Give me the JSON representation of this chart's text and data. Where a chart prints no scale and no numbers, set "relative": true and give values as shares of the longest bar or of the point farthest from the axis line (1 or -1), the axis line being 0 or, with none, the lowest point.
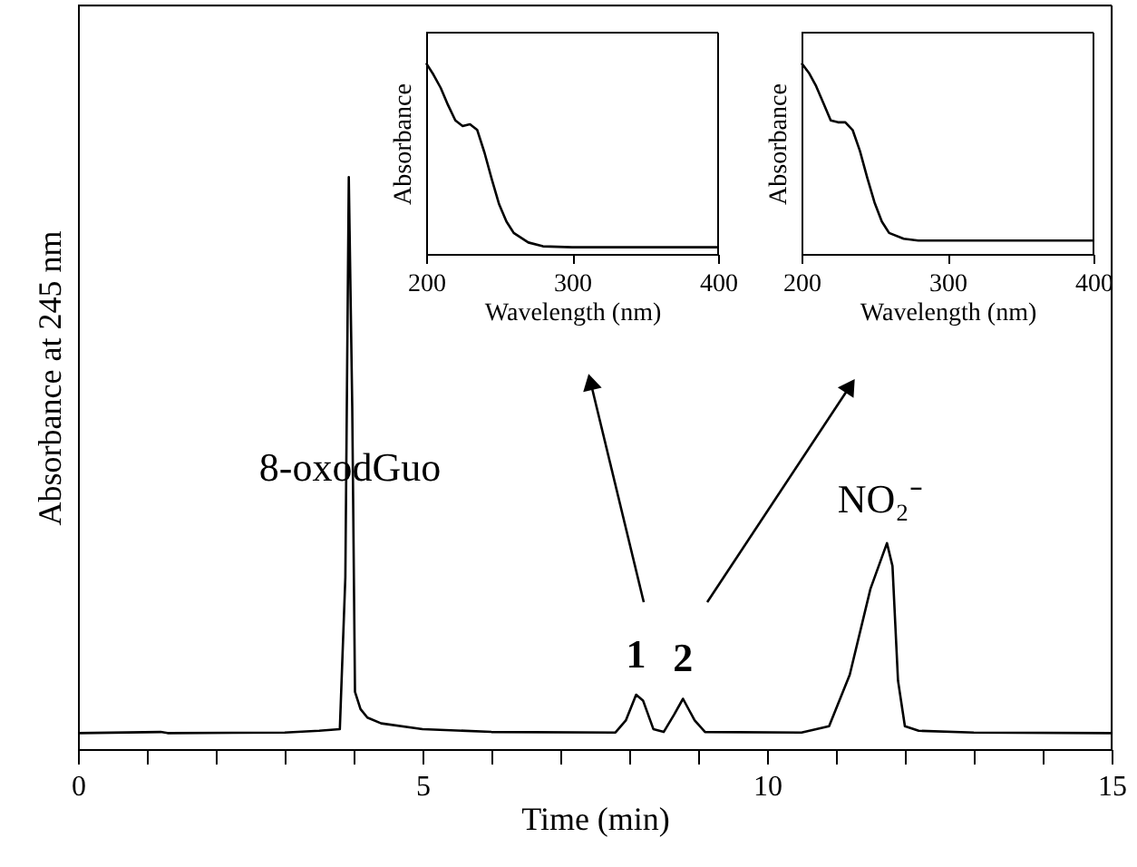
{
  "chart_data": [
    {
      "type": "line",
      "relative": true,
      "xlabel": "Time (min)",
      "ylabel": "Absorbance at 245 nm",
      "xlim": [
        0,
        15
      ],
      "xticks": [
        0,
        {
          "value": 1,
          "label": null
        },
        {
          "value": 2,
          "label": null
        },
        {
          "value": 3,
          "label": null
        },
        {
          "value": 4,
          "label": null
        },
        5,
        {
          "value": 6,
          "label": null
        },
        {
          "value": 7,
          "label": null
        },
        {
          "value": 8,
          "label": null
        },
        {
          "value": 9,
          "label": null
        },
        10,
        {
          "value": 11,
          "label": null
        },
        {
          "value": 12,
          "label": null
        },
        {
          "value": 13,
          "label": null
        },
        {
          "value": 14,
          "label": null
        },
        15
      ],
      "tick_labels": "x",
      "x": [
        0,
        1.2,
        1.3,
        3.0,
        3.5,
        3.8,
        3.88,
        3.93,
        3.98,
        4.02,
        4.1,
        4.2,
        4.4,
        5.0,
        6.0,
        7.8,
        7.95,
        8.1,
        8.2,
        8.35,
        8.5,
        8.65,
        8.78,
        8.95,
        9.1,
        10.5,
        10.9,
        11.2,
        11.5,
        11.74,
        11.82,
        11.9,
        12.0,
        12.2,
        13.0,
        15.0
      ],
      "series": [
        {
          "color": "#000000",
          "values": [
            0.028,
            0.03,
            0.028,
            0.029,
            0.032,
            0.035,
            0.3,
            1.0,
            0.6,
            0.1,
            0.07,
            0.055,
            0.045,
            0.035,
            0.03,
            0.029,
            0.05,
            0.095,
            0.085,
            0.035,
            0.03,
            0.06,
            0.088,
            0.05,
            0.03,
            0.029,
            0.04,
            0.13,
            0.28,
            0.36,
            0.32,
            0.12,
            0.04,
            0.032,
            0.029,
            0.028
          ]
        }
      ],
      "annotations": [
        "8-oxodGuo",
        {
          "text": "1",
          "x": 8.1,
          "y": 0.095
        },
        {
          "text": "2",
          "x": 8.78,
          "y": 0.088
        },
        {
          "text": "NO₂⁻",
          "x": 11.74,
          "y": 0.36
        }
      ]
    },
    {
      "type": "line",
      "relative": true,
      "xlabel": "Wavelength (nm)",
      "ylabel": "Absorbance",
      "xlim": [
        200,
        400
      ],
      "xticks": [
        200,
        300,
        400
      ],
      "tick_labels": "x",
      "x": [
        200,
        205,
        210,
        215,
        220,
        225,
        230,
        235,
        240,
        245,
        250,
        255,
        260,
        270,
        280,
        300,
        350,
        400
      ],
      "series": [
        {
          "color": "#000000",
          "values": [
            1.0,
            0.94,
            0.87,
            0.78,
            0.7,
            0.67,
            0.68,
            0.65,
            0.53,
            0.39,
            0.26,
            0.17,
            0.11,
            0.06,
            0.04,
            0.035,
            0.035,
            0.035
          ]
        }
      ]
    },
    {
      "type": "line",
      "relative": true,
      "xlabel": "Wavelength (nm)",
      "ylabel": "Absorbance",
      "xlim": [
        200,
        400
      ],
      "xticks": [
        200,
        300,
        400
      ],
      "tick_labels": "x",
      "x": [
        200,
        205,
        210,
        215,
        220,
        225,
        230,
        235,
        240,
        245,
        250,
        255,
        260,
        270,
        280,
        300,
        350,
        400
      ],
      "series": [
        {
          "color": "#000000",
          "values": [
            1.0,
            0.95,
            0.88,
            0.79,
            0.7,
            0.69,
            0.69,
            0.65,
            0.54,
            0.4,
            0.27,
            0.17,
            0.11,
            0.08,
            0.07,
            0.07,
            0.07,
            0.07
          ]
        }
      ]
    }
  ]
}
